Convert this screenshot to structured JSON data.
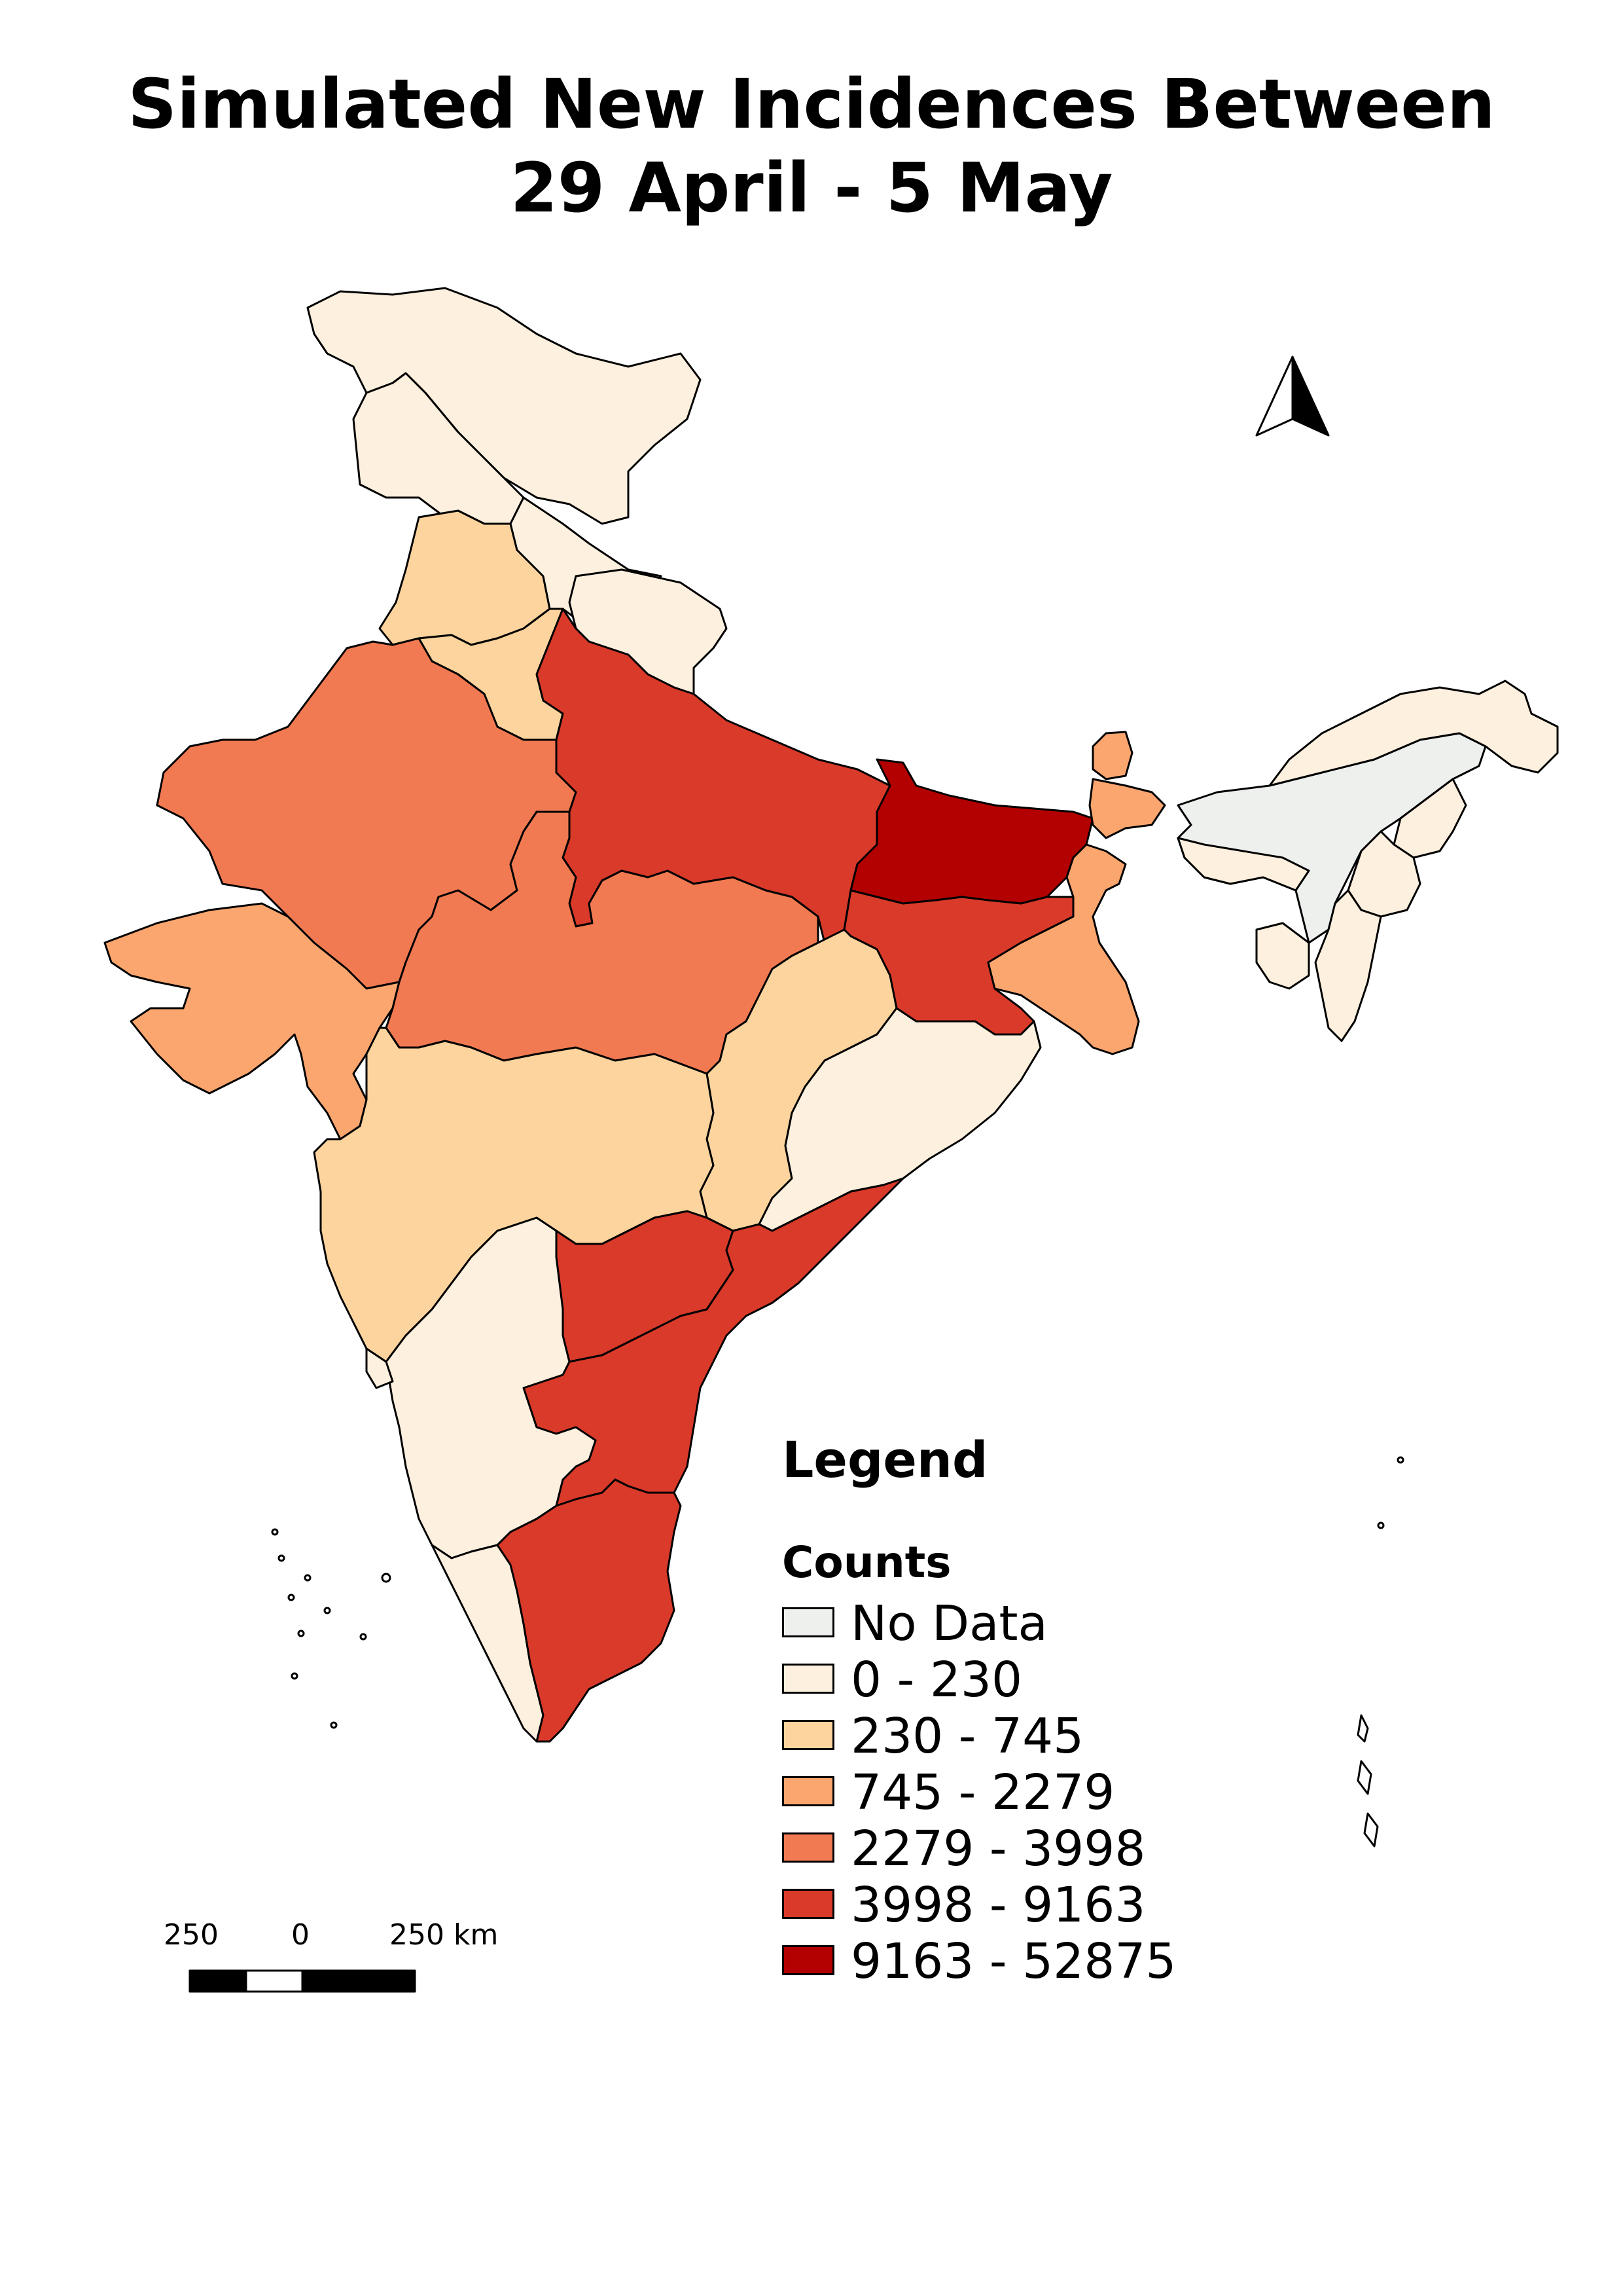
{
  "title": {
    "line1": "Simulated New Incidences Between",
    "line2": "29 April - 5 May"
  },
  "legend": {
    "title": "Legend",
    "subtitle": "Counts",
    "classes": [
      {
        "label": "No Data",
        "color": "#eef0ee"
      },
      {
        "label": "0 - 230",
        "color": "#fef0de"
      },
      {
        "label": "230 - 745",
        "color": "#fdd49e"
      },
      {
        "label": "745 - 2279",
        "color": "#fca66f"
      },
      {
        "label": "2279 - 3998",
        "color": "#f27a52"
      },
      {
        "label": "3998 - 9163",
        "color": "#d93a2a"
      },
      {
        "label": "9163 - 52875",
        "color": "#b30000"
      }
    ]
  },
  "scalebar": {
    "labels": [
      "250",
      "0",
      "250 km"
    ]
  },
  "north_arrow": {
    "icon": "north-arrow-icon"
  },
  "regions": [
    {
      "name": "Jammu and Kashmir",
      "class": 1
    },
    {
      "name": "Himachal Pradesh",
      "class": 1
    },
    {
      "name": "Punjab",
      "class": 2
    },
    {
      "name": "Uttarakhand",
      "class": 1
    },
    {
      "name": "Haryana",
      "class": 2
    },
    {
      "name": "Rajasthan",
      "class": 4
    },
    {
      "name": "Uttar Pradesh",
      "class": 5
    },
    {
      "name": "Bihar",
      "class": 6
    },
    {
      "name": "Gujarat",
      "class": 3
    },
    {
      "name": "Madhya Pradesh",
      "class": 4
    },
    {
      "name": "Jharkhand",
      "class": 5
    },
    {
      "name": "West Bengal",
      "class": 3
    },
    {
      "name": "Sikkim",
      "class": 3
    },
    {
      "name": "Chhattisgarh",
      "class": 2
    },
    {
      "name": "Odisha",
      "class": 1
    },
    {
      "name": "Maharashtra",
      "class": 2
    },
    {
      "name": "Telangana",
      "class": 5
    },
    {
      "name": "Andhra Pradesh",
      "class": 5
    },
    {
      "name": "Karnataka",
      "class": 1
    },
    {
      "name": "Goa",
      "class": 1
    },
    {
      "name": "Kerala",
      "class": 1
    },
    {
      "name": "Tamil Nadu",
      "class": 5
    },
    {
      "name": "Assam",
      "class": 0
    },
    {
      "name": "Arunachal Pradesh",
      "class": 1
    },
    {
      "name": "Meghalaya",
      "class": 1
    },
    {
      "name": "Nagaland",
      "class": 1
    },
    {
      "name": "Manipur",
      "class": 1
    },
    {
      "name": "Mizoram",
      "class": 1
    },
    {
      "name": "Tripura",
      "class": 1
    }
  ]
}
